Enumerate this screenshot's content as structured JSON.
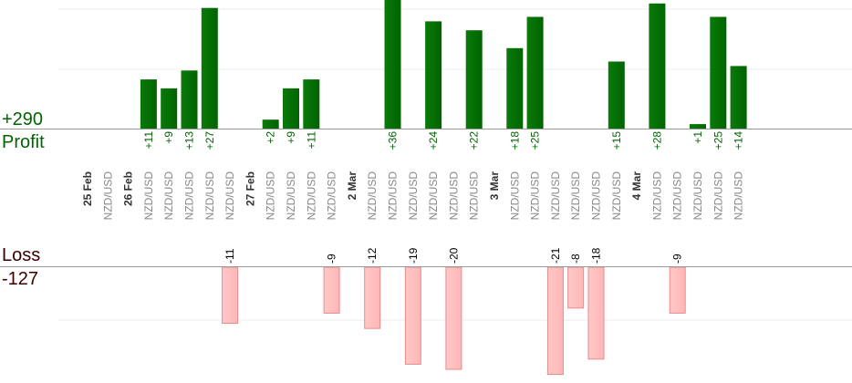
{
  "summary": {
    "profit_total": "+290",
    "profit_label": "Profit",
    "loss_label": "Loss",
    "loss_total": "-127"
  },
  "colors": {
    "profit_bar": "#006400",
    "loss_bar": "#ffb6b6",
    "loss_bar_stroke": "#e88a8a",
    "date_text": "#333333",
    "pair_text": "#888888",
    "profit_value_text": "#006400",
    "loss_value_text": "#000000"
  },
  "chart_data": {
    "type": "bar",
    "title": "",
    "profit_scale_max": 30,
    "loss_scale_max": 21,
    "columns": [
      {
        "label": "25 Feb",
        "kind": "date"
      },
      {
        "label": "NZD/USD",
        "kind": "trade",
        "value": null
      },
      {
        "label": "26 Feb",
        "kind": "date"
      },
      {
        "label": "NZD/USD",
        "kind": "trade",
        "value": 11
      },
      {
        "label": "NZD/USD",
        "kind": "trade",
        "value": 9
      },
      {
        "label": "NZD/USD",
        "kind": "trade",
        "value": 13
      },
      {
        "label": "NZD/USD",
        "kind": "trade",
        "value": 27
      },
      {
        "label": "NZD/USD",
        "kind": "trade",
        "value": -11
      },
      {
        "label": "27 Feb",
        "kind": "date"
      },
      {
        "label": "NZD/USD",
        "kind": "trade",
        "value": 2
      },
      {
        "label": "NZD/USD",
        "kind": "trade",
        "value": 9
      },
      {
        "label": "NZD/USD",
        "kind": "trade",
        "value": 11
      },
      {
        "label": "NZD/USD",
        "kind": "trade",
        "value": -9
      },
      {
        "label": "2 Mar",
        "kind": "date"
      },
      {
        "label": "NZD/USD",
        "kind": "trade",
        "value": -12
      },
      {
        "label": "NZD/USD",
        "kind": "trade",
        "value": 36
      },
      {
        "label": "NZD/USD",
        "kind": "trade",
        "value": -19
      },
      {
        "label": "NZD/USD",
        "kind": "trade",
        "value": 24
      },
      {
        "label": "NZD/USD",
        "kind": "trade",
        "value": -20
      },
      {
        "label": "NZD/USD",
        "kind": "trade",
        "value": 22
      },
      {
        "label": "3 Mar",
        "kind": "date"
      },
      {
        "label": "NZD/USD",
        "kind": "trade",
        "value": 18
      },
      {
        "label": "NZD/USD",
        "kind": "trade",
        "value": 25
      },
      {
        "label": "NZD/USD",
        "kind": "trade",
        "value": -21
      },
      {
        "label": "NZD/USD",
        "kind": "trade",
        "value": -8
      },
      {
        "label": "NZD/USD",
        "kind": "trade",
        "value": -18
      },
      {
        "label": "NZD/USD",
        "kind": "trade",
        "value": 15
      },
      {
        "label": "4 Mar",
        "kind": "date"
      },
      {
        "label": "NZD/USD",
        "kind": "trade",
        "value": 28
      },
      {
        "label": "NZD/USD",
        "kind": "trade",
        "value": -9
      },
      {
        "label": "NZD/USD",
        "kind": "trade",
        "value": 1
      },
      {
        "label": "NZD/USD",
        "kind": "trade",
        "value": 25
      },
      {
        "label": "NZD/USD",
        "kind": "trade",
        "value": 14
      }
    ]
  }
}
